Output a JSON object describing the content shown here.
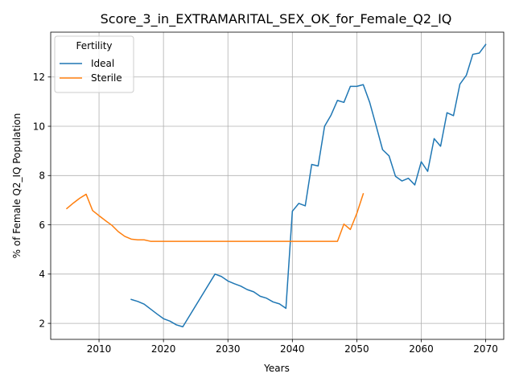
{
  "chart_data": {
    "type": "line",
    "title": "Score_3_in_EXTRAMARITAL_SEX_OK_for_Female_Q2_IQ",
    "xlabel": "Years",
    "ylabel": "% of Female Q2_IQ Population",
    "xlim": [
      2002.5,
      2072.8
    ],
    "ylim": [
      1.35,
      13.82
    ],
    "xticks": [
      2010,
      2020,
      2030,
      2040,
      2050,
      2060,
      2070
    ],
    "yticks": [
      2,
      4,
      6,
      8,
      10,
      12
    ],
    "grid": true,
    "legend": {
      "title": "Fertility",
      "position": "upper-left"
    },
    "series": [
      {
        "name": "Ideal",
        "color": "#1f77b4",
        "points": [
          [
            2015,
            2.97
          ],
          [
            2016,
            2.89
          ],
          [
            2017,
            2.78
          ],
          [
            2018,
            2.58
          ],
          [
            2019,
            2.38
          ],
          [
            2020,
            2.19
          ],
          [
            2021,
            2.09
          ],
          [
            2022,
            1.94
          ],
          [
            2023,
            1.86
          ],
          [
            2028,
            4.0
          ],
          [
            2029,
            3.9
          ],
          [
            2030,
            3.72
          ],
          [
            2031,
            3.61
          ],
          [
            2032,
            3.51
          ],
          [
            2033,
            3.37
          ],
          [
            2034,
            3.28
          ],
          [
            2035,
            3.1
          ],
          [
            2036,
            3.02
          ],
          [
            2037,
            2.87
          ],
          [
            2038,
            2.79
          ],
          [
            2039,
            2.61
          ],
          [
            2040,
            6.55
          ],
          [
            2041,
            6.87
          ],
          [
            2042,
            6.77
          ],
          [
            2043,
            8.45
          ],
          [
            2044,
            8.39
          ],
          [
            2045,
            10.0
          ],
          [
            2046,
            10.45
          ],
          [
            2047,
            11.05
          ],
          [
            2048,
            10.97
          ],
          [
            2049,
            11.62
          ],
          [
            2050,
            11.62
          ],
          [
            2051,
            11.69
          ],
          [
            2052,
            10.97
          ],
          [
            2053,
            10.02
          ],
          [
            2054,
            9.05
          ],
          [
            2055,
            8.8
          ],
          [
            2056,
            7.97
          ],
          [
            2057,
            7.78
          ],
          [
            2058,
            7.89
          ],
          [
            2059,
            7.62
          ],
          [
            2060,
            8.56
          ],
          [
            2061,
            8.17
          ],
          [
            2062,
            9.5
          ],
          [
            2063,
            9.19
          ],
          [
            2064,
            10.55
          ],
          [
            2065,
            10.43
          ],
          [
            2066,
            11.71
          ],
          [
            2067,
            12.07
          ],
          [
            2068,
            12.92
          ],
          [
            2069,
            12.97
          ],
          [
            2070,
            13.32
          ]
        ]
      },
      {
        "name": "Sterile",
        "color": "#ff7f0e",
        "points": [
          [
            2005,
            6.66
          ],
          [
            2006,
            6.88
          ],
          [
            2007,
            7.08
          ],
          [
            2008,
            7.24
          ],
          [
            2009,
            6.58
          ],
          [
            2010,
            6.37
          ],
          [
            2011,
            6.17
          ],
          [
            2012,
            5.98
          ],
          [
            2013,
            5.72
          ],
          [
            2014,
            5.53
          ],
          [
            2015,
            5.42
          ],
          [
            2016,
            5.39
          ],
          [
            2017,
            5.39
          ],
          [
            2018,
            5.33
          ],
          [
            2019,
            5.33
          ],
          [
            2020,
            5.33
          ],
          [
            2025,
            5.33
          ],
          [
            2030,
            5.33
          ],
          [
            2035,
            5.33
          ],
          [
            2040,
            5.33
          ],
          [
            2045,
            5.33
          ],
          [
            2046,
            5.33
          ],
          [
            2047,
            5.33
          ],
          [
            2048,
            6.03
          ],
          [
            2049,
            5.81
          ],
          [
            2050,
            6.46
          ],
          [
            2051,
            7.26
          ]
        ]
      }
    ]
  }
}
